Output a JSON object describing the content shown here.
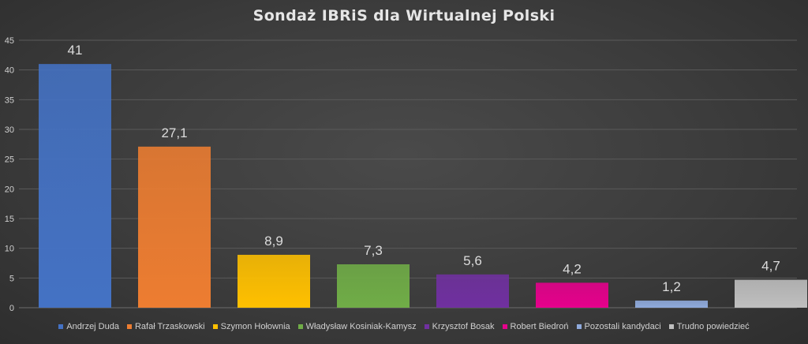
{
  "chart_data": {
    "type": "bar",
    "title": "Sondaż IBRiS dla Wirtualnej Polski",
    "categories": [
      "Andrzej Duda",
      "Rafał Trzaskowski",
      "Szymon Hołownia",
      "Władysław Kosiniak-Kamysz",
      "Krzysztof Bosak",
      "Robert Biedroń",
      "Pozostali kandydaci",
      "Trudno powiedzieć"
    ],
    "values": [
      41,
      27.1,
      8.9,
      7.3,
      5.6,
      4.2,
      1.2,
      4.7
    ],
    "value_labels": [
      "41",
      "27,1",
      "8,9",
      "7,3",
      "5,6",
      "4,2",
      "1,2",
      "4,7"
    ],
    "colors": [
      "#4472c4",
      "#ed7d31",
      "#ffc000",
      "#70ad47",
      "#7030a0",
      "#e6008c",
      "#8faadc",
      "#bfbfbf"
    ],
    "ylim": [
      0,
      45
    ],
    "yticks": [
      0,
      5,
      10,
      15,
      20,
      25,
      30,
      35,
      40,
      45
    ],
    "grid": true,
    "legend_position": "bottom"
  }
}
